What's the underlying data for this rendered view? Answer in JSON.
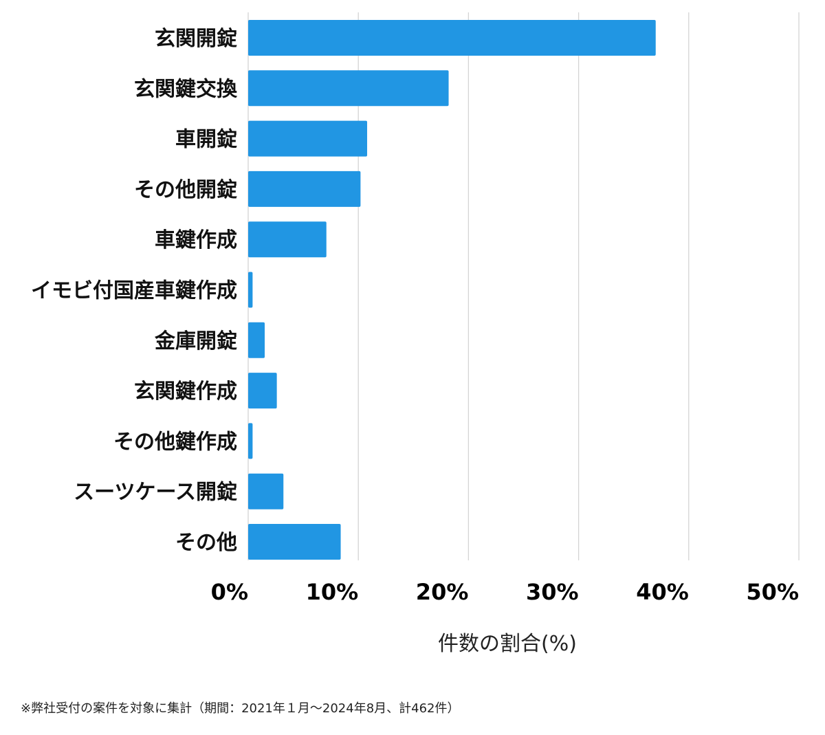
{
  "chart_data": {
    "type": "bar",
    "orientation": "horizontal",
    "categories": [
      "玄関開錠",
      "玄関鍵交換",
      "車開錠",
      "その他開錠",
      "車鍵作成",
      "イモビ付国産車鍵作成",
      "金庫開錠",
      "玄関鍵作成",
      "その他鍵作成",
      "スーツケース開錠",
      "その他"
    ],
    "values": [
      37.0,
      18.2,
      10.8,
      10.2,
      7.1,
      0.4,
      1.5,
      2.6,
      0.4,
      3.2,
      8.4
    ],
    "unit": "%",
    "xlabel": "件数の割合(%)",
    "xlim": [
      0,
      50
    ],
    "ticks": [
      0,
      10,
      20,
      30,
      40,
      50
    ],
    "tick_labels": [
      "0%",
      "10%",
      "20%",
      "30%",
      "40%",
      "50%"
    ],
    "grid": "vertical",
    "bar_color": "#2196E3",
    "grid_color": "#D4D4D4"
  },
  "footnote": "※弊社受付の案件を対象に集計（期間：2021年１月〜2024年8月、計462件）"
}
